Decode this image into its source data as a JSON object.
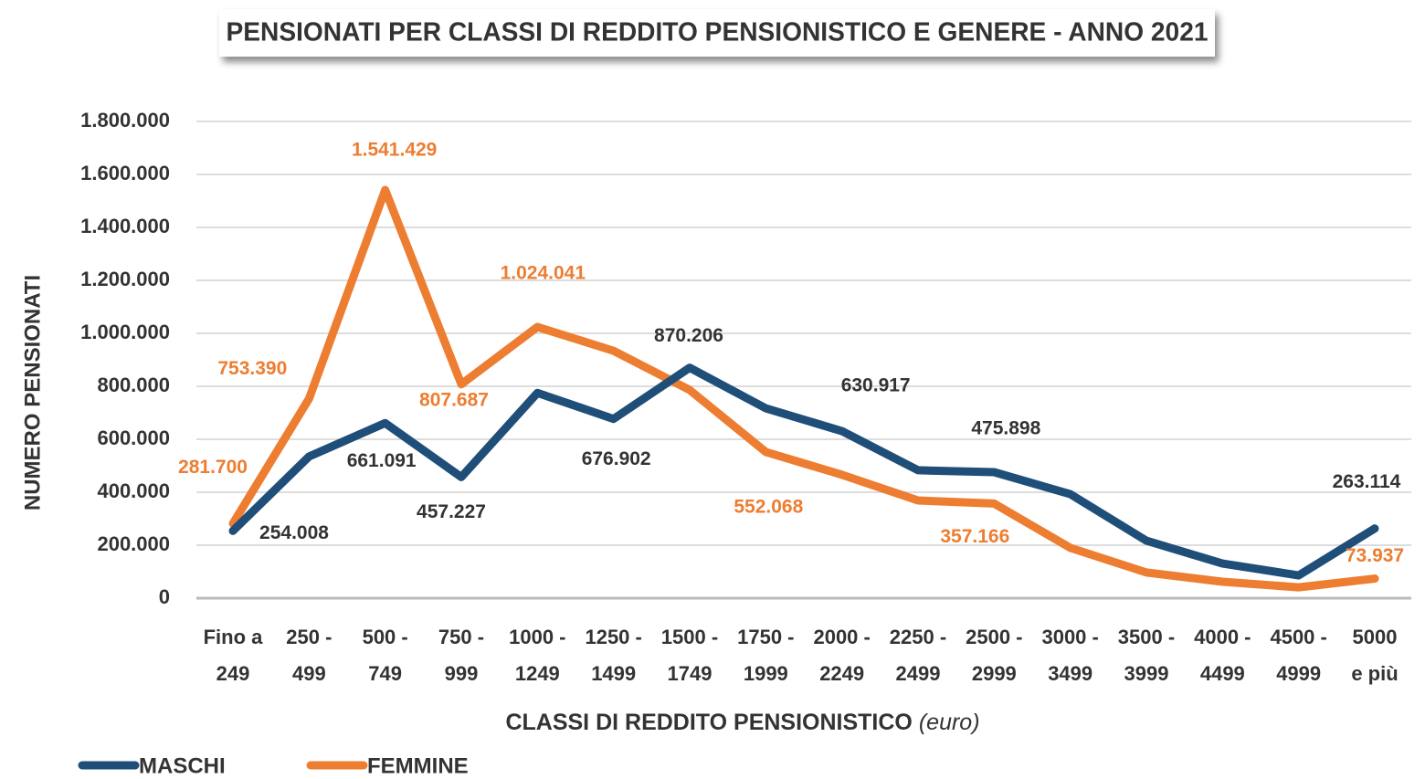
{
  "chart_data": {
    "type": "line",
    "title": "PENSIONATI PER CLASSI DI REDDITO PENSIONISTICO E GENERE - ANNO 2021",
    "xlabel": [
      "CLASSI DI REDDITO PENSIONISTICO",
      "(euro)"
    ],
    "ylabel": "NUMERO PENSIONATI",
    "categories": [
      [
        "Fino a",
        "249"
      ],
      [
        "250 -",
        "499"
      ],
      [
        "500 -",
        "749"
      ],
      [
        "750 -",
        "999"
      ],
      [
        "1000 -",
        "1249"
      ],
      [
        "1250 -",
        "1499"
      ],
      [
        "1500 -",
        "1749"
      ],
      [
        "1750 -",
        "1999"
      ],
      [
        "2000 -",
        "2249"
      ],
      [
        "2250 -",
        "2499"
      ],
      [
        "2500 -",
        "2999"
      ],
      [
        "3000 -",
        "3499"
      ],
      [
        "3500 -",
        "3999"
      ],
      [
        "4000 -",
        "4499"
      ],
      [
        "4500 -",
        "4999"
      ],
      [
        "5000",
        "e più"
      ]
    ],
    "series": [
      {
        "name": "MASCHI",
        "color": "#1f4e79",
        "values": [
          254008,
          535000,
          661091,
          457227,
          775000,
          676902,
          870206,
          717000,
          630917,
          483000,
          475898,
          393000,
          217000,
          131000,
          86000,
          263114
        ],
        "value_labels": [
          "254.008",
          null,
          "661.091",
          "457.227",
          null,
          "676.902",
          "870.206",
          null,
          "630.917",
          null,
          "475.898",
          null,
          null,
          null,
          null,
          "263.114"
        ]
      },
      {
        "name": "FEMMINE",
        "color": "#ed7d31",
        "values": [
          281700,
          753390,
          1541429,
          807687,
          1024041,
          934000,
          786000,
          552068,
          466000,
          369000,
          357166,
          190000,
          97000,
          62000,
          41000,
          73937
        ],
        "value_labels": [
          "281.700",
          "753.390",
          "1.541.429",
          "807.687",
          "1.024.041",
          null,
          null,
          "552.068",
          null,
          null,
          "357.166",
          null,
          null,
          null,
          null,
          "73.937"
        ]
      }
    ],
    "ylim": [
      0,
      1800000
    ],
    "yticks": [
      0,
      {
        "value": 200000,
        "label": "200.000"
      },
      {
        "value": 400000,
        "label": "400.000"
      },
      {
        "value": 600000,
        "label": "600.000"
      },
      {
        "value": 800000,
        "label": "800.000"
      },
      {
        "value": 1000000,
        "label": "1.000.000"
      },
      {
        "value": 1200000,
        "label": "1.200.000"
      },
      {
        "value": 1400000,
        "label": "1.400.000"
      },
      {
        "value": 1600000,
        "label": "1.600.000"
      },
      {
        "value": 1800000,
        "label": "1.800.000"
      }
    ],
    "grid": true,
    "legend": "bottom-left"
  }
}
